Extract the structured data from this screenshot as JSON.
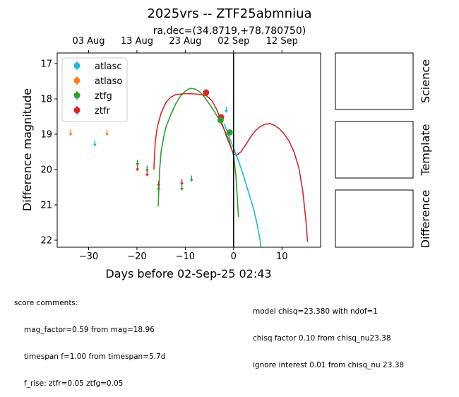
{
  "chart_data": {
    "type": "scatter",
    "title": "2025vrs -- ZTF25abmniua",
    "subtitle": "ra,dec=(34.8719,+78.780750)",
    "xlabel": "Days before 02-Sep-25 02:43",
    "ylabel": "Difference magnitude",
    "xlim": [
      -36.5,
      18
    ],
    "ylim": [
      22.2,
      16.7
    ],
    "y_inverted": true,
    "xticks": [
      -30,
      -20,
      -10,
      0,
      10
    ],
    "yticks": [
      17,
      18,
      19,
      20,
      21,
      22
    ],
    "top_axis_ticks": [
      {
        "x": -30,
        "label": "03 Aug"
      },
      {
        "x": -20,
        "label": "13 Aug"
      },
      {
        "x": -10,
        "label": "23 Aug"
      },
      {
        "x": 0,
        "label": "02 Sep"
      },
      {
        "x": 10,
        "label": "12 Sep"
      }
    ],
    "vline_x": 0,
    "legend_position": "upper-left",
    "legend": [
      {
        "name": "atlasc",
        "color": "#17becf"
      },
      {
        "name": "atlaso",
        "color": "#ff7f0e"
      },
      {
        "name": "ztfg",
        "color": "#2ca02c"
      },
      {
        "name": "ztfr",
        "color": "#d62728"
      }
    ],
    "detections": [
      {
        "series": "ztfr",
        "x": -5.7,
        "y": 17.82,
        "err": 0.06
      },
      {
        "series": "ztfr",
        "x": -2.6,
        "y": 18.52,
        "err": 0.07
      },
      {
        "series": "ztfg",
        "x": -2.7,
        "y": 18.6,
        "err": 0.06
      },
      {
        "series": "ztfg",
        "x": -0.8,
        "y": 18.95,
        "err": 0.07
      }
    ],
    "upper_limits": [
      {
        "series": "atlaso",
        "x": -33.7,
        "y": 18.95
      },
      {
        "series": "atlasc",
        "x": -28.7,
        "y": 19.25
      },
      {
        "series": "atlaso",
        "x": -26.2,
        "y": 18.95
      },
      {
        "series": "ztfg",
        "x": -19.9,
        "y": 19.8
      },
      {
        "series": "ztfr",
        "x": -19.9,
        "y": 19.95
      },
      {
        "series": "ztfg",
        "x": -17.9,
        "y": 19.97
      },
      {
        "series": "ztfr",
        "x": -17.9,
        "y": 20.1
      },
      {
        "series": "ztfr",
        "x": -15.5,
        "y": 20.4
      },
      {
        "series": "ztfg",
        "x": -15.5,
        "y": 20.5
      },
      {
        "series": "ztfr",
        "x": -10.7,
        "y": 20.35
      },
      {
        "series": "ztfg",
        "x": -10.7,
        "y": 20.5
      },
      {
        "series": "ztfg",
        "x": -8.7,
        "y": 20.25
      },
      {
        "series": "atlasc",
        "x": -1.5,
        "y": 18.3
      }
    ],
    "model_curves": [
      {
        "series": "ztfg",
        "points": [
          [
            -15.6,
            21.05
          ],
          [
            -15.3,
            20.0
          ],
          [
            -15.0,
            19.5
          ],
          [
            -14.5,
            19.1
          ],
          [
            -14.0,
            18.8
          ],
          [
            -13.0,
            18.45
          ],
          [
            -12.0,
            18.15
          ],
          [
            -11.0,
            17.92
          ],
          [
            -10.0,
            17.78
          ],
          [
            -9.0,
            17.7
          ],
          [
            -8.0,
            17.72
          ],
          [
            -7.0,
            17.8
          ],
          [
            -6.0,
            17.95
          ],
          [
            -5.0,
            18.15
          ],
          [
            -4.0,
            18.35
          ],
          [
            -3.0,
            18.58
          ],
          [
            -2.0,
            18.85
          ],
          [
            -1.0,
            19.15
          ],
          [
            0.0,
            19.6
          ],
          [
            0.5,
            20.2
          ],
          [
            1.0,
            21.35
          ]
        ]
      },
      {
        "series": "ztfr",
        "points": [
          [
            -16.5,
            20.0
          ],
          [
            -16.2,
            19.2
          ],
          [
            -15.8,
            18.8
          ],
          [
            -15.0,
            18.4
          ],
          [
            -14.0,
            18.1
          ],
          [
            -13.0,
            17.95
          ],
          [
            -12.0,
            17.88
          ],
          [
            -10.0,
            17.85
          ],
          [
            -8.0,
            17.86
          ],
          [
            -6.5,
            17.88
          ],
          [
            -5.5,
            17.92
          ],
          [
            -4.5,
            18.05
          ],
          [
            -3.5,
            18.3
          ],
          [
            -2.5,
            18.65
          ],
          [
            -1.5,
            19.05
          ],
          [
            -0.5,
            19.4
          ],
          [
            0.0,
            19.55
          ],
          [
            0.6,
            19.6
          ],
          [
            1.5,
            19.5
          ],
          [
            2.5,
            19.3
          ],
          [
            3.5,
            19.08
          ],
          [
            4.5,
            18.9
          ],
          [
            5.5,
            18.78
          ],
          [
            6.5,
            18.72
          ],
          [
            7.5,
            18.7
          ],
          [
            8.5,
            18.75
          ],
          [
            9.5,
            18.85
          ],
          [
            10.5,
            19.0
          ],
          [
            11.5,
            19.2
          ],
          [
            12.5,
            19.5
          ],
          [
            13.5,
            19.95
          ],
          [
            14.3,
            20.6
          ],
          [
            15.0,
            21.5
          ],
          [
            15.3,
            22.05
          ]
        ]
      },
      {
        "series": "atlasc",
        "points": [
          [
            -2.0,
            18.7
          ],
          [
            -1.5,
            18.85
          ],
          [
            -1.0,
            19.05
          ],
          [
            0.0,
            19.4
          ],
          [
            1.0,
            19.75
          ],
          [
            2.0,
            20.15
          ],
          [
            3.0,
            20.6
          ],
          [
            4.0,
            21.05
          ],
          [
            4.8,
            21.5
          ],
          [
            5.5,
            22.0
          ],
          [
            5.7,
            22.3
          ]
        ]
      }
    ]
  },
  "panels": {
    "science": "Science",
    "template": "Template",
    "difference": "Difference"
  },
  "comments_left": {
    "header": "score comments:",
    "lines": [
      "mag_factor=0.59 from mag=18.96",
      "timespan f=1.00 from timespan=5.7d",
      "f_rise: ztfr=0.05 ztfg=0.05"
    ]
  },
  "comments_right": {
    "lines": [
      "model chisq=23.380 with ndof=1",
      "chisq factor 0.10 from chisq_nu23.38",
      "ignore interest 0.01 from chisq_nu 23.38"
    ]
  }
}
